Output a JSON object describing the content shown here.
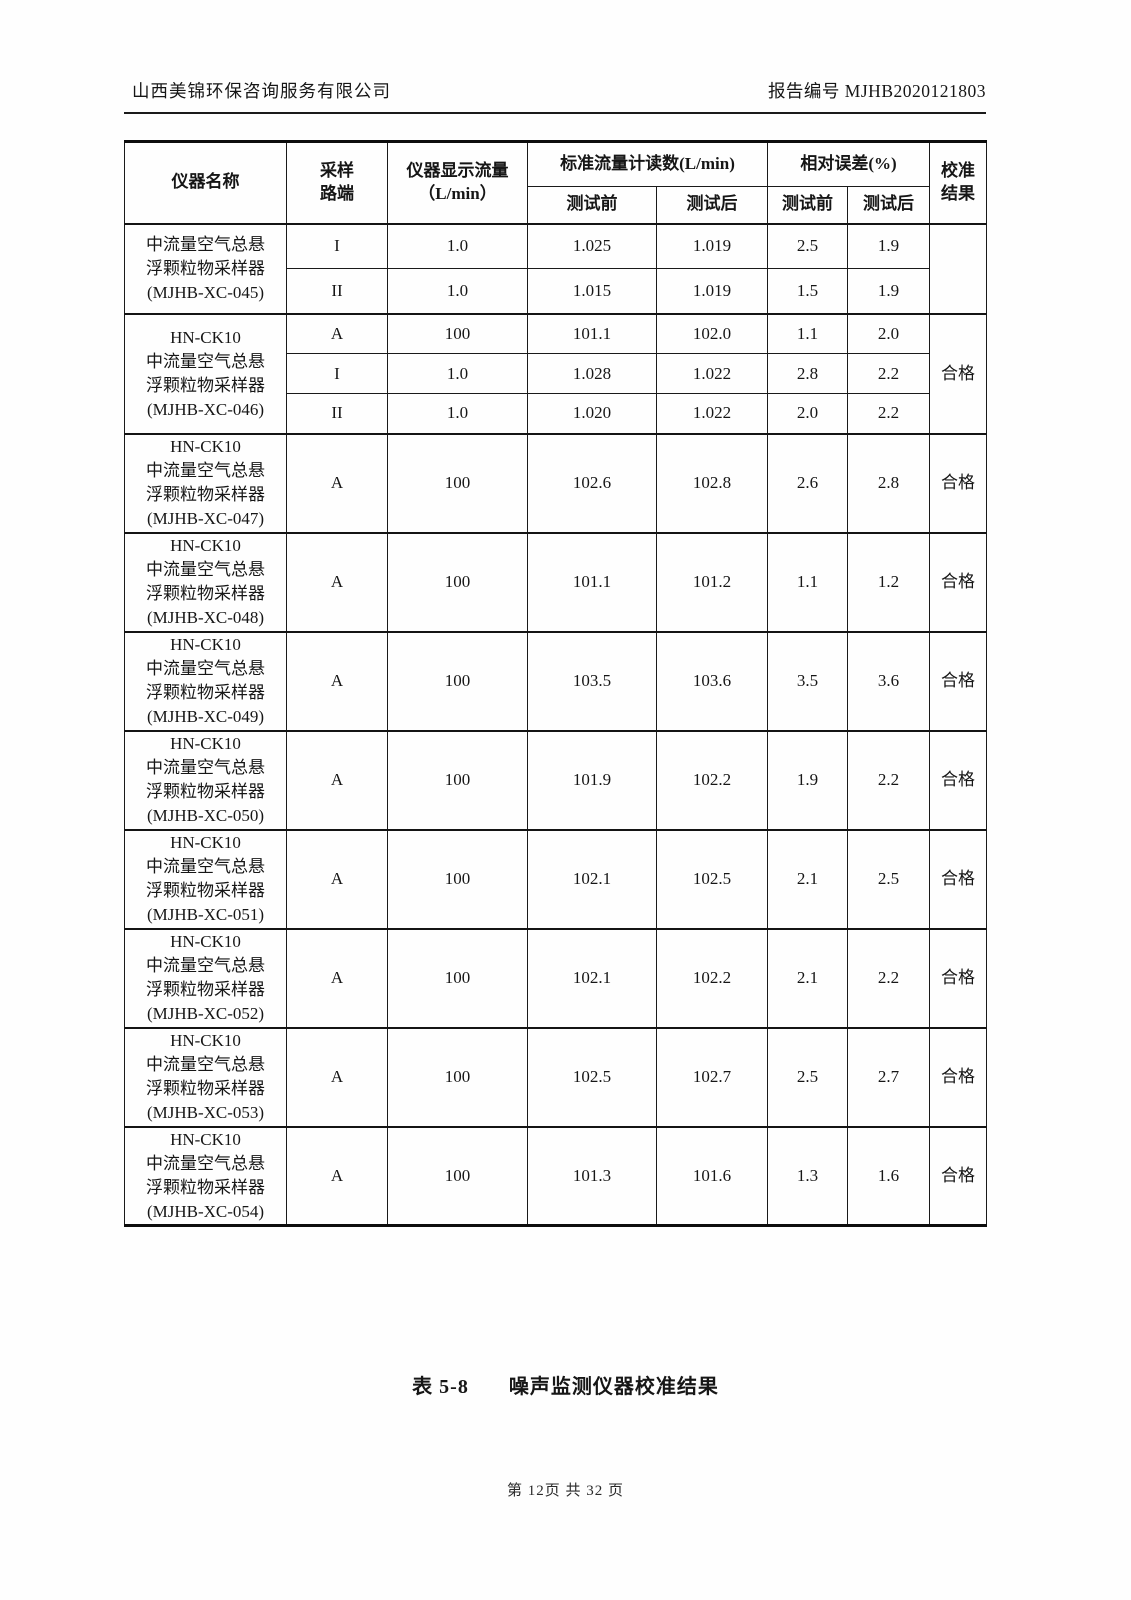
{
  "page_header": {
    "company": "山西美锦环保咨询服务有限公司",
    "report_no": "报告编号 MJHB2020121803"
  },
  "table": {
    "header": {
      "col_instrument": "仪器名称",
      "col_channel": [
        "采样",
        "路端"
      ],
      "col_display_flow": [
        "仪器显示流量",
        "（L/min）"
      ],
      "group_standard": "标准流量计读数(L/min)",
      "group_error": "相对误差(%)",
      "sub_before": "测试前",
      "sub_after": "测试后",
      "col_result": [
        "校准",
        "结果"
      ]
    },
    "blocks": [
      {
        "name_lines": [
          "中流量空气总悬",
          "浮颗粒物采样器",
          "(MJHB-XC-045)"
        ],
        "rows": [
          [
            "I",
            "1.0",
            "1.025",
            "1.019",
            "2.5",
            "1.9"
          ],
          [
            "II",
            "1.0",
            "1.015",
            "1.019",
            "1.5",
            "1.9"
          ]
        ],
        "result": ""
      },
      {
        "name_lines": [
          "HN-CK10",
          "中流量空气总悬",
          "浮颗粒物采样器",
          "(MJHB-XC-046)"
        ],
        "rows": [
          [
            "A",
            "100",
            "101.1",
            "102.0",
            "1.1",
            "2.0"
          ],
          [
            "I",
            "1.0",
            "1.028",
            "1.022",
            "2.8",
            "2.2"
          ],
          [
            "II",
            "1.0",
            "1.020",
            "1.022",
            "2.0",
            "2.2"
          ]
        ],
        "result": "合格"
      },
      {
        "name_lines": [
          "HN-CK10",
          "中流量空气总悬",
          "浮颗粒物采样器",
          "(MJHB-XC-047)"
        ],
        "rows": [
          [
            "A",
            "100",
            "102.6",
            "102.8",
            "2.6",
            "2.8"
          ]
        ],
        "result": "合格"
      },
      {
        "name_lines": [
          "HN-CK10",
          "中流量空气总悬",
          "浮颗粒物采样器",
          "(MJHB-XC-048)"
        ],
        "rows": [
          [
            "A",
            "100",
            "101.1",
            "101.2",
            "1.1",
            "1.2"
          ]
        ],
        "result": "合格"
      },
      {
        "name_lines": [
          "HN-CK10",
          "中流量空气总悬",
          "浮颗粒物采样器",
          "(MJHB-XC-049)"
        ],
        "rows": [
          [
            "A",
            "100",
            "103.5",
            "103.6",
            "3.5",
            "3.6"
          ]
        ],
        "result": "合格"
      },
      {
        "name_lines": [
          "HN-CK10",
          "中流量空气总悬",
          "浮颗粒物采样器",
          "(MJHB-XC-050)"
        ],
        "rows": [
          [
            "A",
            "100",
            "101.9",
            "102.2",
            "1.9",
            "2.2"
          ]
        ],
        "result": "合格"
      },
      {
        "name_lines": [
          "HN-CK10",
          "中流量空气总悬",
          "浮颗粒物采样器",
          "(MJHB-XC-051)"
        ],
        "rows": [
          [
            "A",
            "100",
            "102.1",
            "102.5",
            "2.1",
            "2.5"
          ]
        ],
        "result": "合格"
      },
      {
        "name_lines": [
          "HN-CK10",
          "中流量空气总悬",
          "浮颗粒物采样器",
          "(MJHB-XC-052)"
        ],
        "rows": [
          [
            "A",
            "100",
            "102.1",
            "102.2",
            "2.1",
            "2.2"
          ]
        ],
        "result": "合格"
      },
      {
        "name_lines": [
          "HN-CK10",
          "中流量空气总悬",
          "浮颗粒物采样器",
          "(MJHB-XC-053)"
        ],
        "rows": [
          [
            "A",
            "100",
            "102.5",
            "102.7",
            "2.5",
            "2.7"
          ]
        ],
        "result": "合格"
      },
      {
        "name_lines": [
          "HN-CK10",
          "中流量空气总悬",
          "浮颗粒物采样器",
          "(MJHB-XC-054)"
        ],
        "rows": [
          [
            "A",
            "100",
            "101.3",
            "101.6",
            "1.3",
            "1.6"
          ]
        ],
        "result": "合格"
      }
    ]
  },
  "caption": {
    "label": "表 5-8",
    "title": "噪声监测仪器校准结果"
  },
  "footer": {
    "page_info": "第 12页  共 32 页"
  }
}
